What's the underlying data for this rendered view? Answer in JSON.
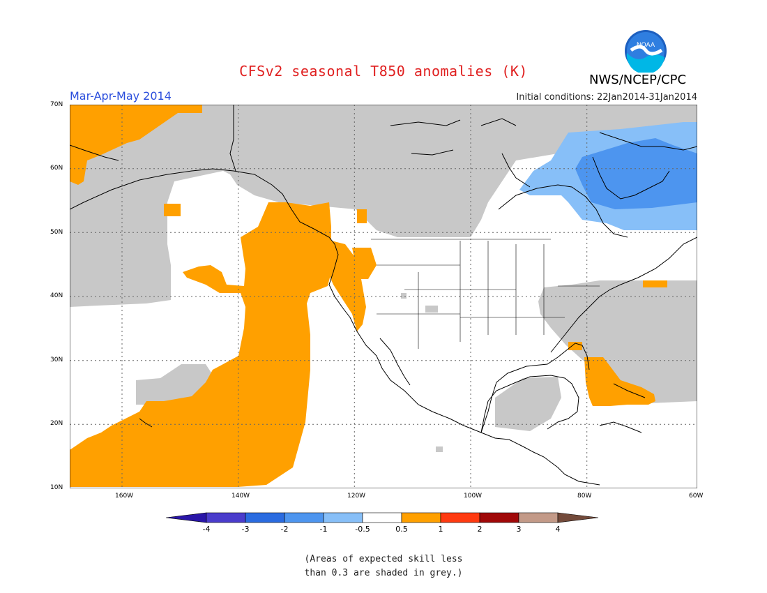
{
  "header": {
    "title": "CFSv2 seasonal T850 anomalies (K)",
    "agency": "NWS/NCEP/CPC",
    "logo_text": "NOAA",
    "season": "Mar-Apr-May 2014",
    "initial_conditions": "Initial conditions: 22Jan2014-31Jan2014"
  },
  "map": {
    "lat_labels": [
      "70N",
      "60N",
      "50N",
      "40N",
      "30N",
      "20N",
      "10N"
    ],
    "lon_labels": [
      "160W",
      "140W",
      "120W",
      "100W",
      "80W",
      "60W"
    ]
  },
  "colorbar": {
    "labels": [
      "-4",
      "-3",
      "-2",
      "-1",
      "-0.5",
      "0.5",
      "1",
      "2",
      "3",
      "4"
    ],
    "colors": [
      "#2a16a8",
      "#4a3ccc",
      "#2a6be0",
      "#4d95ef",
      "#87bff8",
      "#ffffff",
      "#ffa000",
      "#ff3a10",
      "#a00808",
      "#c39a88",
      "#734a3a"
    ]
  },
  "note": {
    "line1": "(Areas of expected skill less",
    "line2": "than 0.3 are shaded in grey.)"
  },
  "colors": {
    "grey": "#c8c8c8",
    "orange": "#ffa000",
    "light_blue": "#87bff8",
    "mid_blue": "#4d95ef"
  }
}
